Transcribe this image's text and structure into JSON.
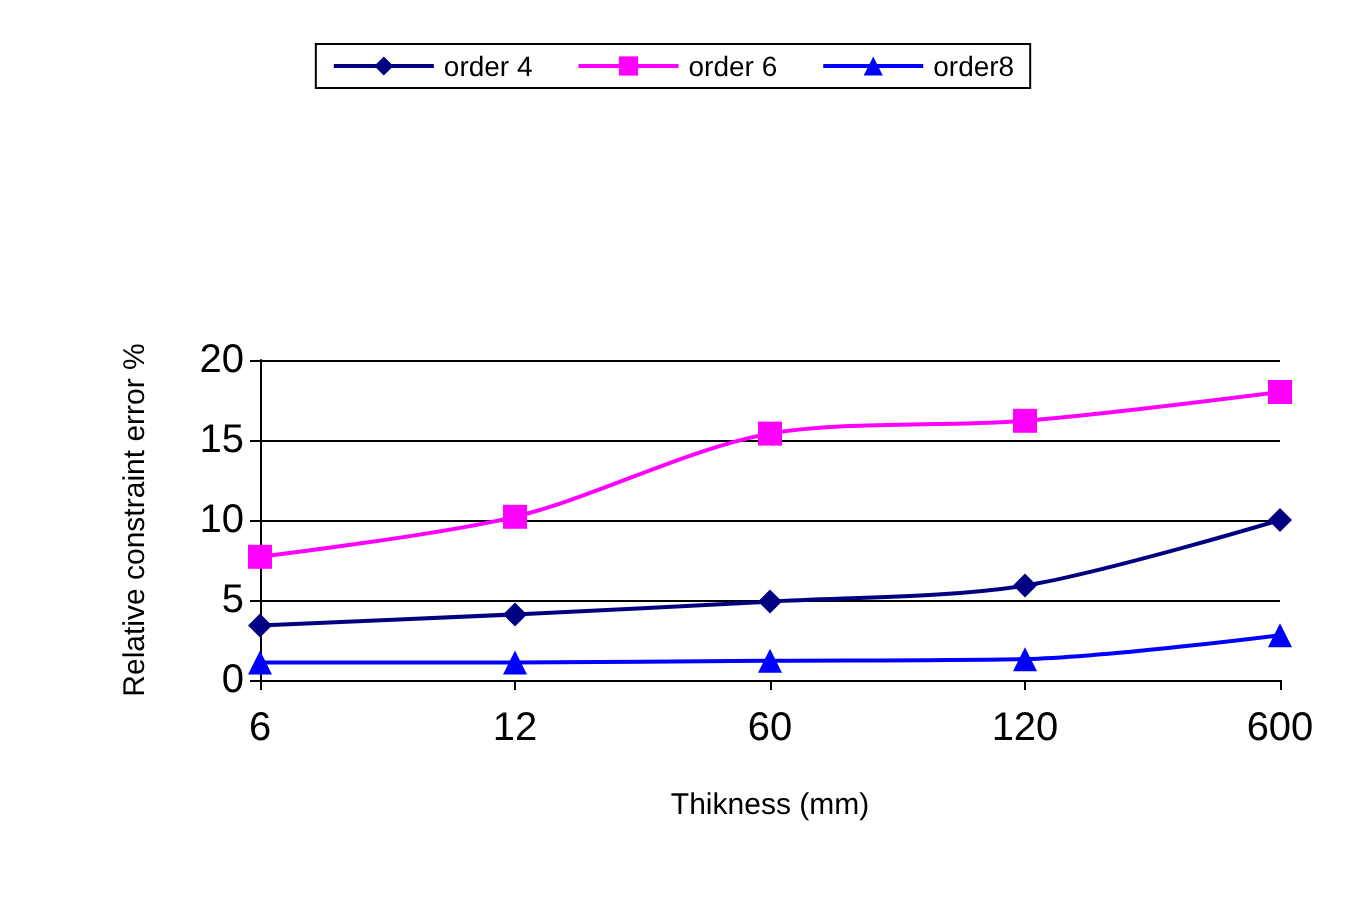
{
  "chart_data": {
    "type": "line",
    "xlabel": "Thikness (mm)",
    "ylabel": "Relative constraint error %",
    "categories": [
      "6",
      "12",
      "60",
      "120",
      "600"
    ],
    "series": [
      {
        "name": "order 4",
        "color": "#000080",
        "marker": "diamond",
        "values": [
          3.4,
          4.1,
          4.9,
          5.9,
          10.0
        ]
      },
      {
        "name": "order 6",
        "color": "#ff00ff",
        "marker": "square",
        "values": [
          7.7,
          10.2,
          15.4,
          16.2,
          18.0
        ]
      },
      {
        "name": "order8",
        "color": "#0000ff",
        "marker": "triangle",
        "values": [
          1.1,
          1.1,
          1.2,
          1.3,
          2.8
        ]
      }
    ],
    "ylim": [
      0,
      20
    ],
    "yticks": [
      0,
      5,
      10,
      15,
      20
    ],
    "grid": "y",
    "legend": "top"
  }
}
